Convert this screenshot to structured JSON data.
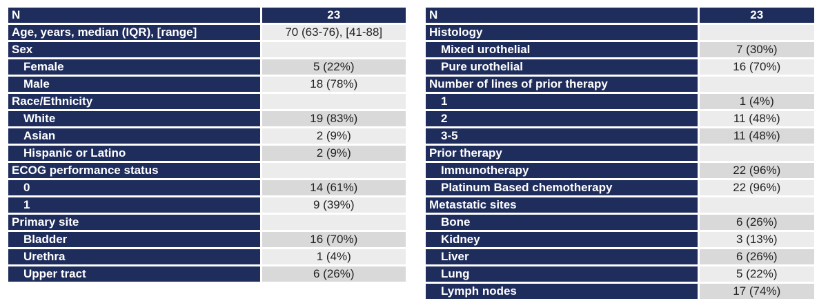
{
  "tables": [
    {
      "header": {
        "label": "N",
        "value": "23"
      },
      "rows": [
        {
          "kind": "cat",
          "label": "Age, years, median (IQR), [range]",
          "value": "70 (63-76), [41-88]"
        },
        {
          "kind": "cat",
          "label": "Sex",
          "value": ""
        },
        {
          "kind": "row",
          "label": "Female",
          "value": "5 (22%)"
        },
        {
          "kind": "row",
          "label": "Male",
          "value": "18 (78%)"
        },
        {
          "kind": "cat",
          "label": "Race/Ethnicity",
          "value": ""
        },
        {
          "kind": "row",
          "label": "White",
          "value": "19 (83%)"
        },
        {
          "kind": "row",
          "label": "Asian",
          "value": "2 (9%)"
        },
        {
          "kind": "row",
          "label": "Hispanic or Latino",
          "value": "2 (9%)"
        },
        {
          "kind": "cat",
          "label": "ECOG performance status",
          "value": ""
        },
        {
          "kind": "row",
          "label": "0",
          "value": "14 (61%)"
        },
        {
          "kind": "row",
          "label": "1",
          "value": "9 (39%)"
        },
        {
          "kind": "cat",
          "label": "Primary site",
          "value": ""
        },
        {
          "kind": "row",
          "label": "Bladder",
          "value": "16 (70%)"
        },
        {
          "kind": "row",
          "label": "Urethra",
          "value": "1 (4%)"
        },
        {
          "kind": "row",
          "label": "Upper tract",
          "value": "6 (26%)"
        }
      ]
    },
    {
      "header": {
        "label": "N",
        "value": "23"
      },
      "rows": [
        {
          "kind": "cat",
          "label": "Histology",
          "value": ""
        },
        {
          "kind": "row",
          "label": "Mixed urothelial",
          "value": "7 (30%)"
        },
        {
          "kind": "row",
          "label": "Pure urothelial",
          "value": "16 (70%)"
        },
        {
          "kind": "cat",
          "label": "Number of lines of prior therapy",
          "value": ""
        },
        {
          "kind": "row",
          "label": "1",
          "value": "1 (4%)"
        },
        {
          "kind": "row",
          "label": "2",
          "value": "11 (48%)"
        },
        {
          "kind": "row",
          "label": "3-5",
          "value": "11 (48%)"
        },
        {
          "kind": "cat",
          "label": "Prior therapy",
          "value": ""
        },
        {
          "kind": "row",
          "label": "Immunotherapy",
          "value": "22 (96%)"
        },
        {
          "kind": "row",
          "label": "Platinum Based chemotherapy",
          "value": "22 (96%)"
        },
        {
          "kind": "cat",
          "label": "Metastatic sites",
          "value": ""
        },
        {
          "kind": "row",
          "label": "Bone",
          "value": "6 (26%)"
        },
        {
          "kind": "row",
          "label": "Kidney",
          "value": "3 (13%)"
        },
        {
          "kind": "row",
          "label": "Liver",
          "value": "6 (26%)"
        },
        {
          "kind": "row",
          "label": "Lung",
          "value": "5 (22%)"
        },
        {
          "kind": "row",
          "label": "Lymph nodes",
          "value": "17 (74%)"
        }
      ]
    }
  ],
  "colors": {
    "header_navy": "#1f2d5c",
    "cell_light": "#ececec",
    "cell_mid": "#d9d9d9"
  }
}
